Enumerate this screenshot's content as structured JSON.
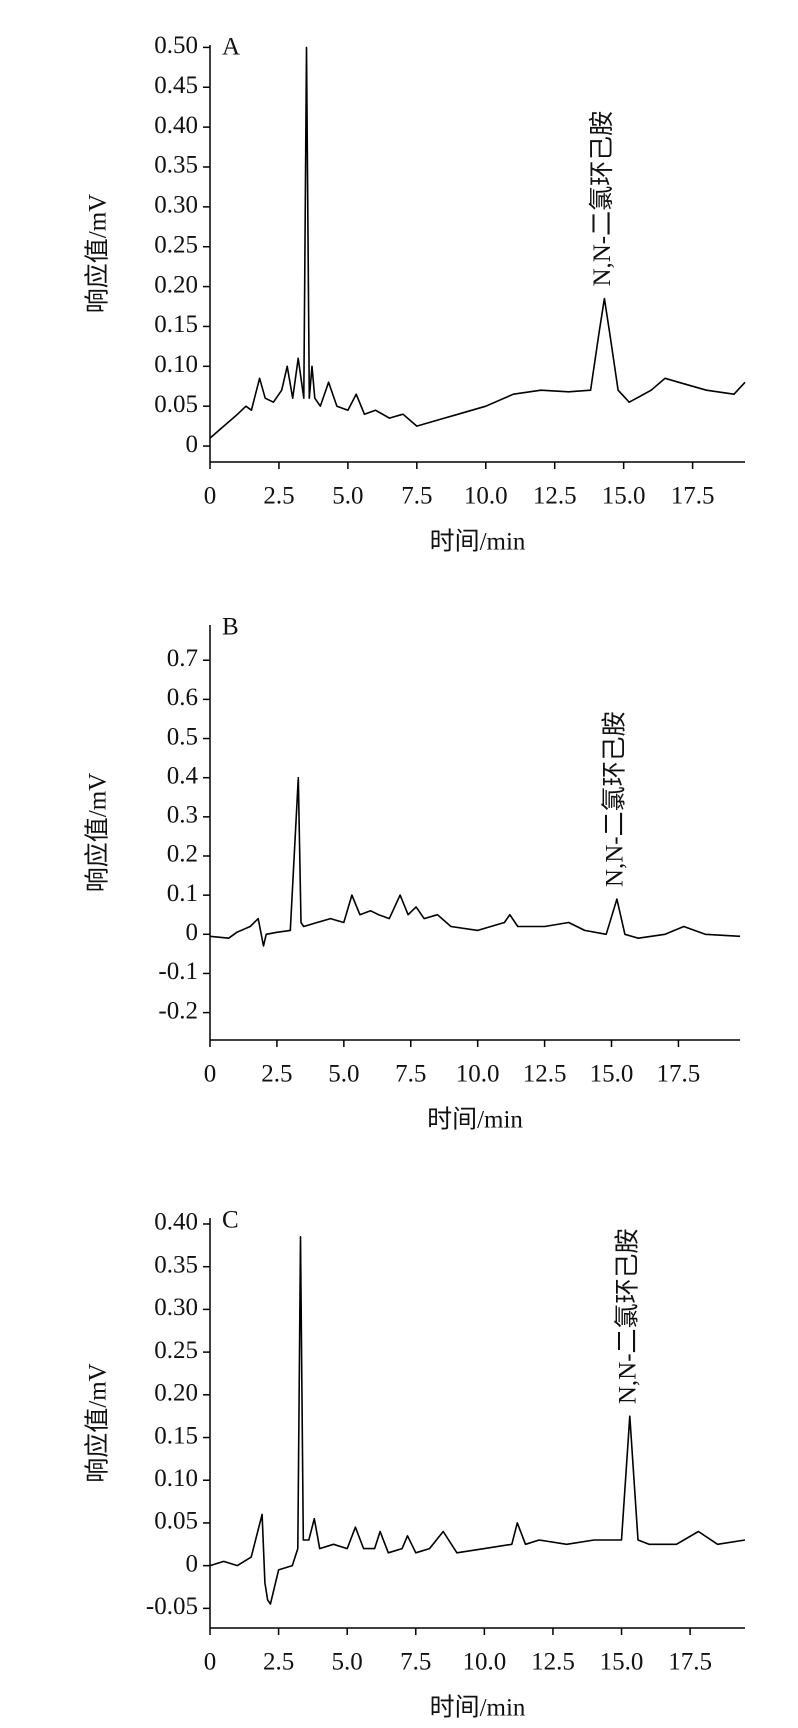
{
  "chart_data": [
    {
      "type": "line",
      "panel_label": "A",
      "annotation": "N,N-二氯环己胺",
      "y_label": "响应值/mV",
      "x_label": "时间/min",
      "color": "#000000",
      "x": [
        0,
        0.5,
        1,
        1.3,
        1.5,
        1.8,
        2.0,
        2.3,
        2.6,
        2.8,
        3.0,
        3.2,
        3.4,
        3.5,
        3.6,
        3.7,
        3.8,
        4.0,
        4.3,
        4.6,
        5.0,
        5.3,
        5.6,
        6.0,
        6.5,
        7.0,
        7.5,
        8.0,
        8.5,
        9.0,
        10,
        11,
        12,
        13,
        13.8,
        14.1,
        14.3,
        14.5,
        14.8,
        15.2,
        16,
        16.5,
        17,
        18,
        19,
        19.4
      ],
      "values": [
        0.01,
        0.025,
        0.04,
        0.05,
        0.045,
        0.085,
        0.06,
        0.055,
        0.07,
        0.1,
        0.06,
        0.11,
        0.06,
        0.5,
        0.06,
        0.1,
        0.06,
        0.05,
        0.08,
        0.05,
        0.045,
        0.065,
        0.04,
        0.045,
        0.035,
        0.04,
        0.025,
        0.03,
        0.035,
        0.04,
        0.05,
        0.065,
        0.07,
        0.068,
        0.07,
        0.14,
        0.185,
        0.14,
        0.07,
        0.055,
        0.07,
        0.085,
        0.08,
        0.07,
        0.065,
        0.08
      ],
      "xlim": [
        0,
        19.4
      ],
      "ylim": [
        -0.02,
        0.503
      ],
      "xticks": [
        0,
        2.5,
        {
          "value": 5,
          "label": "5.0"
        },
        7.5,
        {
          "value": 10,
          "label": "10.0"
        },
        12.5,
        {
          "value": 15,
          "label": "15.0"
        },
        17.5
      ],
      "yticks": [
        0,
        0.05,
        {
          "value": 0.1,
          "label": "0.10"
        },
        0.15,
        {
          "value": 0.2,
          "label": "0.20"
        },
        0.25,
        {
          "value": 0.3,
          "label": "0.30"
        },
        0.35,
        {
          "value": 0.4,
          "label": "0.40"
        },
        0.45,
        {
          "value": 0.5,
          "label": "0.50"
        }
      ]
    },
    {
      "type": "line",
      "panel_label": "B",
      "annotation": "N,N-二氯环己胺",
      "y_label": "响应值/mV",
      "x_label": "时间/min",
      "color": "#000000",
      "x": [
        0,
        0.7,
        1.0,
        1.5,
        1.8,
        2.0,
        2.1,
        2.5,
        3.0,
        3.3,
        3.4,
        3.5,
        4.0,
        4.5,
        5.0,
        5.3,
        5.6,
        6.0,
        6.3,
        6.7,
        7.1,
        7.4,
        7.7,
        8.0,
        8.5,
        9,
        10,
        11,
        11.2,
        11.5,
        12.5,
        13.4,
        14,
        14.8,
        15.2,
        15.5,
        16,
        17,
        17.7,
        18.5,
        19.8
      ],
      "values": [
        -0.005,
        -0.01,
        0.005,
        0.02,
        0.04,
        -0.03,
        0.0,
        0.005,
        0.01,
        0.4,
        0.03,
        0.02,
        0.03,
        0.04,
        0.03,
        0.1,
        0.05,
        0.06,
        0.05,
        0.04,
        0.1,
        0.05,
        0.07,
        0.04,
        0.05,
        0.02,
        0.01,
        0.03,
        0.05,
        0.02,
        0.02,
        0.03,
        0.01,
        0.0,
        0.09,
        0.0,
        -0.01,
        0.0,
        0.02,
        0.0,
        -0.005
      ],
      "xlim": [
        0,
        19.8
      ],
      "ylim": [
        -0.27,
        0.79
      ],
      "xticks": [
        0,
        2.5,
        {
          "value": 5,
          "label": "5.0"
        },
        7.5,
        {
          "value": 10,
          "label": "10.0"
        },
        12.5,
        {
          "value": 15,
          "label": "15.0"
        },
        17.5
      ],
      "yticks": [
        -0.2,
        -0.1,
        0,
        0.1,
        0.2,
        0.3,
        0.4,
        0.5,
        0.6,
        0.7
      ]
    },
    {
      "type": "line",
      "panel_label": "C",
      "annotation": "N,N-二氯环己胺",
      "y_label": "响应值/mV",
      "x_label": "时间/min",
      "color": "#000000",
      "x": [
        0,
        0.5,
        1.0,
        1.5,
        1.9,
        2.0,
        2.1,
        2.2,
        2.5,
        3.0,
        3.2,
        3.3,
        3.4,
        3.6,
        3.8,
        4,
        4.5,
        5.0,
        5.3,
        5.6,
        6.0,
        6.2,
        6.5,
        7.0,
        7.2,
        7.5,
        8.0,
        8.5,
        9,
        10,
        11,
        11.2,
        11.5,
        12,
        13,
        14,
        15,
        15.3,
        15.6,
        16,
        17,
        17.8,
        18.5,
        19.5
      ],
      "values": [
        0,
        0.005,
        0.0,
        0.01,
        0.06,
        -0.02,
        -0.04,
        -0.045,
        -0.005,
        0.0,
        0.02,
        0.385,
        0.03,
        0.03,
        0.055,
        0.02,
        0.025,
        0.02,
        0.045,
        0.02,
        0.02,
        0.04,
        0.015,
        0.02,
        0.035,
        0.015,
        0.02,
        0.04,
        0.015,
        0.02,
        0.025,
        0.05,
        0.025,
        0.03,
        0.025,
        0.03,
        0.03,
        0.175,
        0.03,
        0.025,
        0.025,
        0.04,
        0.025,
        0.03
      ],
      "xlim": [
        0,
        19.5
      ],
      "ylim": [
        -0.073,
        0.407
      ],
      "xticks": [
        0,
        2.5,
        {
          "value": 5,
          "label": "5.0"
        },
        7.5,
        {
          "value": 10,
          "label": "10.0"
        },
        12.5,
        {
          "value": 15,
          "label": "15.0"
        },
        17.5
      ],
      "yticks": [
        -0.05,
        0,
        0.05,
        {
          "value": 0.1,
          "label": "0.10"
        },
        0.15,
        {
          "value": 0.2,
          "label": "0.20"
        },
        0.25,
        {
          "value": 0.3,
          "label": "0.30"
        },
        0.35,
        {
          "value": 0.4,
          "label": "0.40"
        }
      ]
    }
  ]
}
